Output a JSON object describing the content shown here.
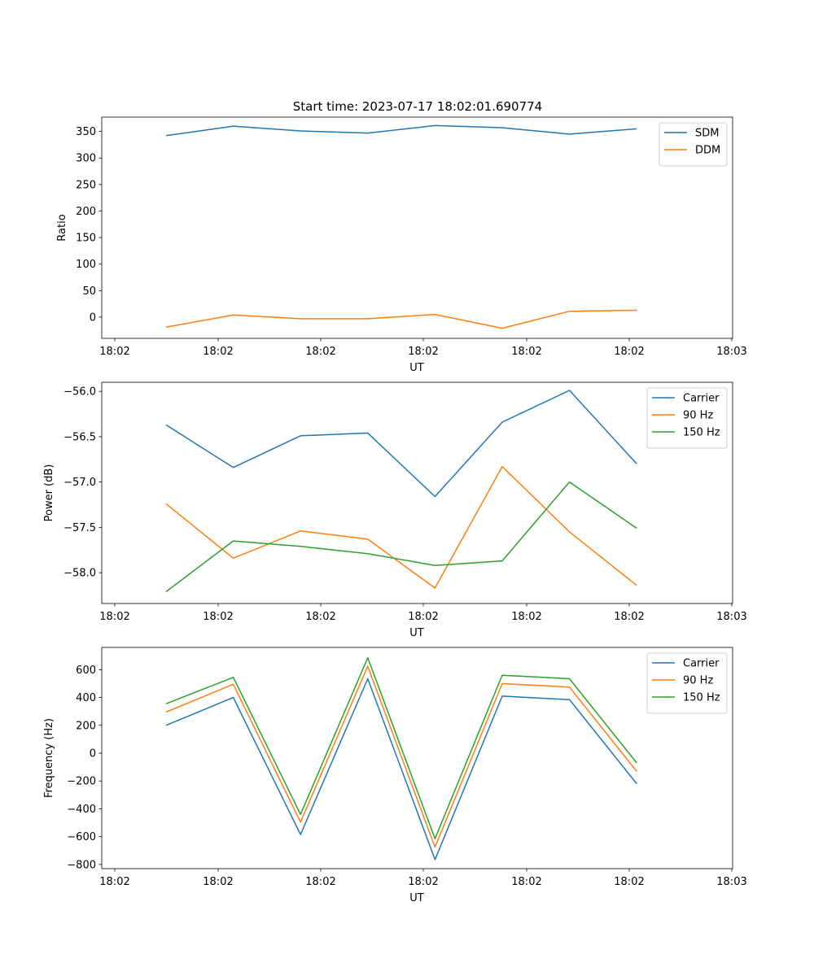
{
  "title": "Start time: 2023-07-17 18:02:01.690774",
  "colors": {
    "blue": "#1f77b4",
    "orange": "#ff7f0e",
    "green": "#2ca02c"
  },
  "chart_data": [
    {
      "type": "line",
      "ylabel": "Ratio",
      "xlabel": "UT",
      "x_tick_labels": [
        "18:02",
        "18:02",
        "18:02",
        "18:02",
        "18:02",
        "18:02",
        "18:03"
      ],
      "y_ticks": [
        0,
        50,
        100,
        150,
        200,
        250,
        300,
        350
      ],
      "ylim": [
        -40,
        377
      ],
      "legend": "top-right",
      "series": [
        {
          "name": "SDM",
          "color": "#1f77b4",
          "values": [
            342,
            360,
            351,
            347,
            361,
            357,
            345,
            355
          ]
        },
        {
          "name": "DDM",
          "color": "#ff7f0e",
          "values": [
            -19,
            4,
            -3,
            -3,
            5,
            -21,
            11,
            13
          ]
        }
      ]
    },
    {
      "type": "line",
      "ylabel": "Power (dB)",
      "xlabel": "UT",
      "x_tick_labels": [
        "18:02",
        "18:02",
        "18:02",
        "18:02",
        "18:02",
        "18:02",
        "18:03"
      ],
      "y_ticks": [
        -58.0,
        -57.5,
        -57.0,
        -56.5,
        -56.0
      ],
      "ylim": [
        -58.34,
        -55.9
      ],
      "legend": "top-right",
      "series": [
        {
          "name": "Carrier",
          "color": "#1f77b4",
          "values": [
            -56.37,
            -56.84,
            -56.49,
            -56.46,
            -57.16,
            -56.34,
            -55.99,
            -56.8
          ]
        },
        {
          "name": "90 Hz",
          "color": "#ff7f0e",
          "values": [
            -57.24,
            -57.84,
            -57.54,
            -57.63,
            -58.17,
            -56.83,
            -57.55,
            -58.14
          ]
        },
        {
          "name": "150 Hz",
          "color": "#2ca02c",
          "values": [
            -58.21,
            -57.65,
            -57.71,
            -57.79,
            -57.92,
            -57.87,
            -57.0,
            -57.51
          ]
        }
      ]
    },
    {
      "type": "line",
      "ylabel": "Frequency (Hz)",
      "xlabel": "UT",
      "x_tick_labels": [
        "18:02",
        "18:02",
        "18:02",
        "18:02",
        "18:02",
        "18:02",
        "18:03"
      ],
      "y_ticks": [
        -800,
        -600,
        -400,
        -200,
        0,
        200,
        400,
        600
      ],
      "ylim": [
        -830,
        760
      ],
      "legend": "top-right",
      "series": [
        {
          "name": "Carrier",
          "color": "#1f77b4",
          "values": [
            200,
            400,
            -585,
            535,
            -765,
            410,
            385,
            -220
          ]
        },
        {
          "name": "90 Hz",
          "color": "#ff7f0e",
          "values": [
            295,
            495,
            -495,
            625,
            -675,
            500,
            475,
            -130
          ]
        },
        {
          "name": "150 Hz",
          "color": "#2ca02c",
          "values": [
            355,
            545,
            -440,
            685,
            -615,
            560,
            535,
            -70
          ]
        }
      ]
    }
  ]
}
